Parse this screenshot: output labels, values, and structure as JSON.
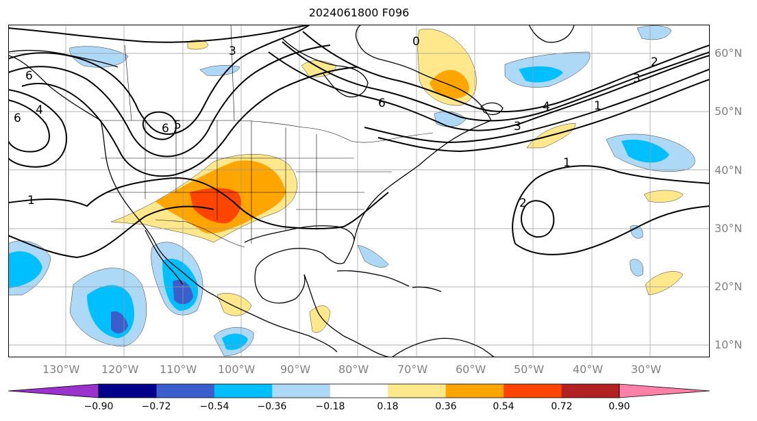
{
  "title": "2024061800 F096",
  "lat_labels": [
    "60°N",
    "50°N",
    "40°N",
    "30°N",
    "20°N",
    "10°N"
  ],
  "lon_labels": [
    "130°W",
    "120°W",
    "110°W",
    "100°W",
    "90°W",
    "80°W",
    "70°W",
    "60°W",
    "50°W",
    "40°W",
    "30°W"
  ],
  "colorbar": {
    "colors": [
      "#9933cc",
      "#00008b",
      "#3a5fcd",
      "#00bfff",
      "#add8f6",
      "#ffffff",
      "#ffe88c",
      "#ffa500",
      "#ff4500",
      "#b22222",
      "#ff80a8"
    ],
    "ticks": [
      "−0.90",
      "−0.72",
      "−0.54",
      "−0.36",
      "−0.18",
      "0.18",
      "0.36",
      "0.54",
      "0.72",
      "0.90"
    ]
  },
  "contour_labels": [
    "6",
    "4",
    "6",
    "3",
    "6",
    "5",
    "1",
    "6",
    "4",
    "3",
    "2",
    "3",
    "1",
    "1",
    "2",
    "0"
  ]
}
